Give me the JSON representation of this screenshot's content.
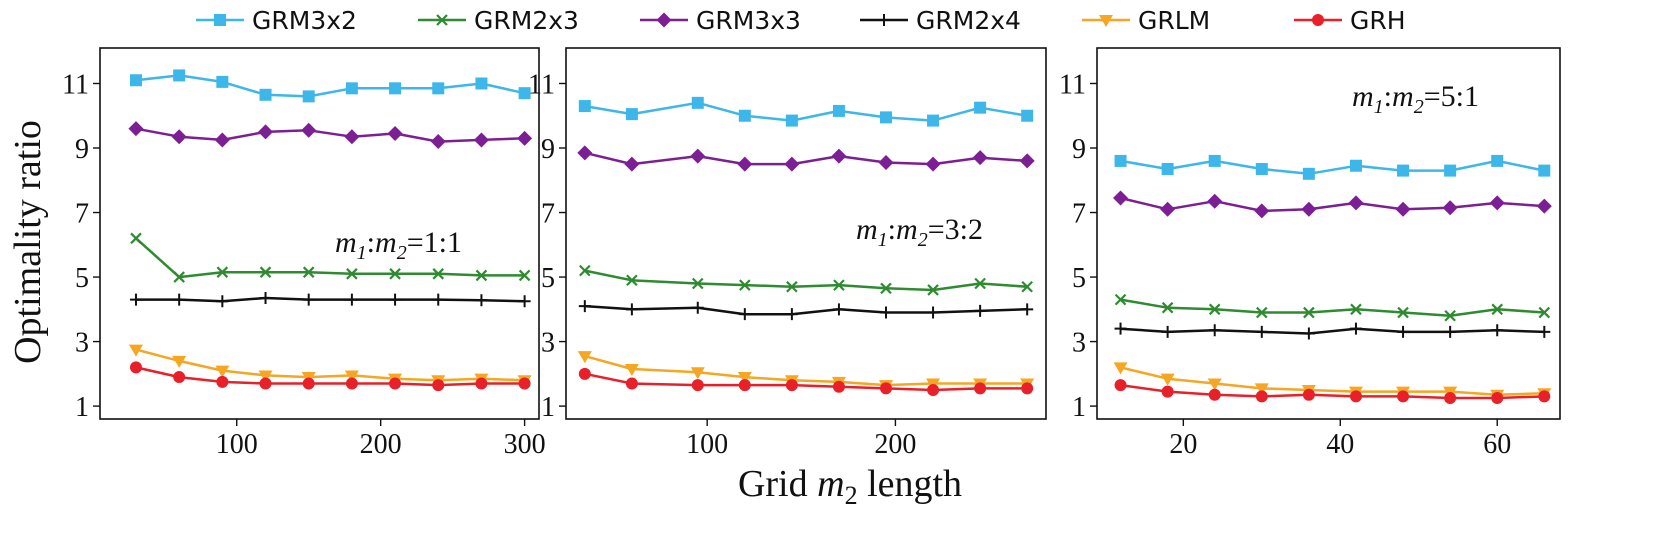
{
  "figure": {
    "ylabel": "Optimality ratio",
    "xlabel_prefix": "Grid ",
    "xlabel_var": "m",
    "xlabel_sub": "2",
    "xlabel_suffix": " length"
  },
  "legend": [
    {
      "name": "GRM3x2",
      "color": "#3db7e9",
      "marker": "square"
    },
    {
      "name": "GRM2x3",
      "color": "#2e8b30",
      "marker": "x"
    },
    {
      "name": "GRM3x3",
      "color": "#7d1f94",
      "marker": "diamond"
    },
    {
      "name": "GRM2x4",
      "color": "#111111",
      "marker": "plus"
    },
    {
      "name": "GRLM",
      "color": "#f5a623",
      "marker": "triangle-down"
    },
    {
      "name": "GRH",
      "color": "#e8202a",
      "marker": "circle"
    }
  ],
  "chart_data": [
    {
      "type": "line",
      "annotation": {
        "m1": "m",
        "sub1": "1",
        "colon": ":",
        "m2": "m",
        "sub2": "2",
        "ratio": "=1:1"
      },
      "x": [
        30,
        60,
        90,
        120,
        150,
        180,
        210,
        240,
        270,
        300
      ],
      "xlim": [
        5,
        310
      ],
      "ylim": [
        0.6,
        12.1
      ],
      "xticks": [
        100,
        200,
        300
      ],
      "yticks": [
        1,
        3,
        5,
        7,
        9,
        11
      ],
      "series": [
        {
          "name": "GRM3x2",
          "values": [
            11.1,
            11.25,
            11.05,
            10.65,
            10.6,
            10.85,
            10.85,
            10.85,
            11.0,
            10.7
          ]
        },
        {
          "name": "GRM2x3",
          "values": [
            6.2,
            5.0,
            5.15,
            5.15,
            5.15,
            5.1,
            5.1,
            5.1,
            5.05,
            5.05
          ]
        },
        {
          "name": "GRM3x3",
          "values": [
            9.6,
            9.35,
            9.25,
            9.5,
            9.55,
            9.35,
            9.45,
            9.2,
            9.25,
            9.3
          ]
        },
        {
          "name": "GRM2x4",
          "values": [
            4.3,
            4.3,
            4.25,
            4.35,
            4.3,
            4.3,
            4.3,
            4.3,
            4.28,
            4.25
          ]
        },
        {
          "name": "GRLM",
          "values": [
            2.75,
            2.4,
            2.1,
            1.95,
            1.9,
            1.95,
            1.85,
            1.8,
            1.85,
            1.8
          ]
        },
        {
          "name": "GRH",
          "values": [
            2.2,
            1.9,
            1.75,
            1.7,
            1.7,
            1.7,
            1.7,
            1.65,
            1.7,
            1.7
          ]
        }
      ]
    },
    {
      "type": "line",
      "annotation": {
        "m1": "m",
        "sub1": "1",
        "colon": ":",
        "m2": "m",
        "sub2": "2",
        "ratio": "=3:2"
      },
      "x": [
        35,
        60,
        95,
        120,
        145,
        170,
        195,
        220,
        245,
        270
      ],
      "xlim": [
        25,
        280
      ],
      "ylim": [
        0.6,
        12.1
      ],
      "xticks": [
        100,
        200
      ],
      "yticks": [
        1,
        3,
        5,
        7,
        9,
        11
      ],
      "series": [
        {
          "name": "GRM3x2",
          "values": [
            10.3,
            10.05,
            10.4,
            10.0,
            9.85,
            10.15,
            9.95,
            9.85,
            10.25,
            10.0
          ]
        },
        {
          "name": "GRM2x3",
          "values": [
            5.2,
            4.9,
            4.8,
            4.75,
            4.7,
            4.75,
            4.65,
            4.6,
            4.8,
            4.7
          ]
        },
        {
          "name": "GRM3x3",
          "values": [
            8.85,
            8.5,
            8.75,
            8.5,
            8.5,
            8.75,
            8.55,
            8.5,
            8.7,
            8.6
          ]
        },
        {
          "name": "GRM2x4",
          "values": [
            4.1,
            4.0,
            4.05,
            3.85,
            3.85,
            4.0,
            3.9,
            3.9,
            3.95,
            4.0
          ]
        },
        {
          "name": "GRLM",
          "values": [
            2.55,
            2.15,
            2.05,
            1.9,
            1.8,
            1.75,
            1.65,
            1.7,
            1.7,
            1.7
          ]
        },
        {
          "name": "GRH",
          "values": [
            2.0,
            1.7,
            1.65,
            1.65,
            1.65,
            1.6,
            1.55,
            1.5,
            1.55,
            1.55
          ]
        }
      ]
    },
    {
      "type": "line",
      "annotation": {
        "m1": "m",
        "sub1": "1",
        "colon": ":",
        "m2": "m",
        "sub2": "2",
        "ratio": "=5:1"
      },
      "x": [
        12,
        18,
        24,
        30,
        36,
        42,
        48,
        54,
        60,
        66
      ],
      "xlim": [
        9,
        68
      ],
      "ylim": [
        0.6,
        12.1
      ],
      "xticks": [
        20,
        40,
        60
      ],
      "yticks": [
        1,
        3,
        5,
        7,
        9,
        11
      ],
      "series": [
        {
          "name": "GRM3x2",
          "values": [
            8.6,
            8.35,
            8.6,
            8.35,
            8.2,
            8.45,
            8.3,
            8.3,
            8.6,
            8.3
          ]
        },
        {
          "name": "GRM2x3",
          "values": [
            4.3,
            4.05,
            4.0,
            3.9,
            3.9,
            4.0,
            3.9,
            3.8,
            4.0,
            3.9
          ]
        },
        {
          "name": "GRM3x3",
          "values": [
            7.45,
            7.1,
            7.35,
            7.05,
            7.1,
            7.3,
            7.1,
            7.15,
            7.3,
            7.2
          ]
        },
        {
          "name": "GRM2x4",
          "values": [
            3.4,
            3.3,
            3.35,
            3.3,
            3.25,
            3.4,
            3.3,
            3.3,
            3.35,
            3.3
          ]
        },
        {
          "name": "GRLM",
          "values": [
            2.2,
            1.85,
            1.7,
            1.55,
            1.5,
            1.45,
            1.45,
            1.45,
            1.35,
            1.4
          ]
        },
        {
          "name": "GRH",
          "values": [
            1.65,
            1.45,
            1.35,
            1.3,
            1.35,
            1.3,
            1.3,
            1.25,
            1.25,
            1.3
          ]
        }
      ]
    }
  ]
}
